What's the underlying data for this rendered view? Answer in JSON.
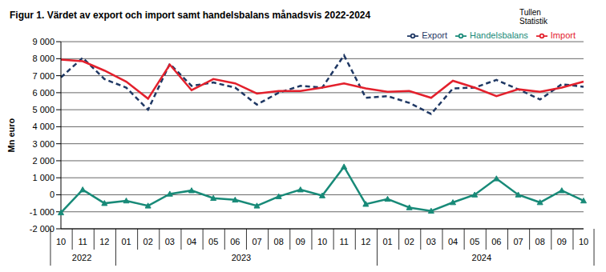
{
  "chart_data": {
    "type": "line",
    "title": "Figur 1. Värdet av export och import samt handelsbalans månadsvis 2022-2024",
    "source_lines": [
      "Tullen",
      "Statistik"
    ],
    "y_label": "Mn euro",
    "categories": [
      "10",
      "11",
      "12",
      "01",
      "02",
      "03",
      "04",
      "05",
      "06",
      "07",
      "08",
      "09",
      "10",
      "11",
      "12",
      "01",
      "02",
      "03",
      "04",
      "05",
      "06",
      "07",
      "08",
      "09",
      "10"
    ],
    "year_groups": [
      {
        "label": "2022",
        "span": 3
      },
      {
        "label": "2023",
        "span": 12
      },
      {
        "label": "2024",
        "span": 10
      }
    ],
    "series": [
      {
        "name": "Export",
        "color": "#1f3864",
        "line_style": "dashed",
        "marker": "none",
        "values": [
          6900,
          8050,
          6800,
          6300,
          5000,
          7700,
          6400,
          6600,
          6300,
          5300,
          6000,
          6400,
          6300,
          8200,
          5700,
          5800,
          5400,
          4750,
          6250,
          6300,
          6750,
          6200,
          5600,
          6500,
          6350
        ]
      },
      {
        "name": "Import",
        "color": "#e3202c",
        "line_style": "solid",
        "marker": "none",
        "values": [
          7950,
          7850,
          7300,
          6650,
          5650,
          7650,
          6150,
          6800,
          6550,
          5950,
          6100,
          6100,
          6300,
          6550,
          6250,
          6050,
          6100,
          5700,
          6700,
          6300,
          5800,
          6200,
          6050,
          6300,
          6650
        ]
      },
      {
        "name": "Handelsbalans",
        "color": "#188a78",
        "line_style": "solid",
        "marker": "triangle",
        "values": [
          -1050,
          300,
          -500,
          -350,
          -650,
          50,
          250,
          -200,
          -300,
          -650,
          -100,
          300,
          -50,
          1650,
          -550,
          -250,
          -750,
          -950,
          -450,
          0,
          950,
          0,
          -450,
          250,
          -350
        ]
      }
    ],
    "ylim": [
      -2000,
      9000
    ],
    "yticks": [
      {
        "value": -2000,
        "label": "-2 000"
      },
      {
        "value": -1000,
        "label": "-1 000"
      },
      0,
      {
        "value": 1000,
        "label": "1 000"
      },
      {
        "value": 2000,
        "label": "2 000"
      },
      {
        "value": 3000,
        "label": "3 000"
      },
      {
        "value": 4000,
        "label": "4 000"
      },
      {
        "value": 5000,
        "label": "5 000"
      },
      {
        "value": 6000,
        "label": "6 000"
      },
      {
        "value": 7000,
        "label": "7 000"
      },
      {
        "value": 8000,
        "label": "8 000"
      },
      {
        "value": 9000,
        "label": "9 000"
      }
    ],
    "grid": true,
    "legend": "top-right"
  }
}
